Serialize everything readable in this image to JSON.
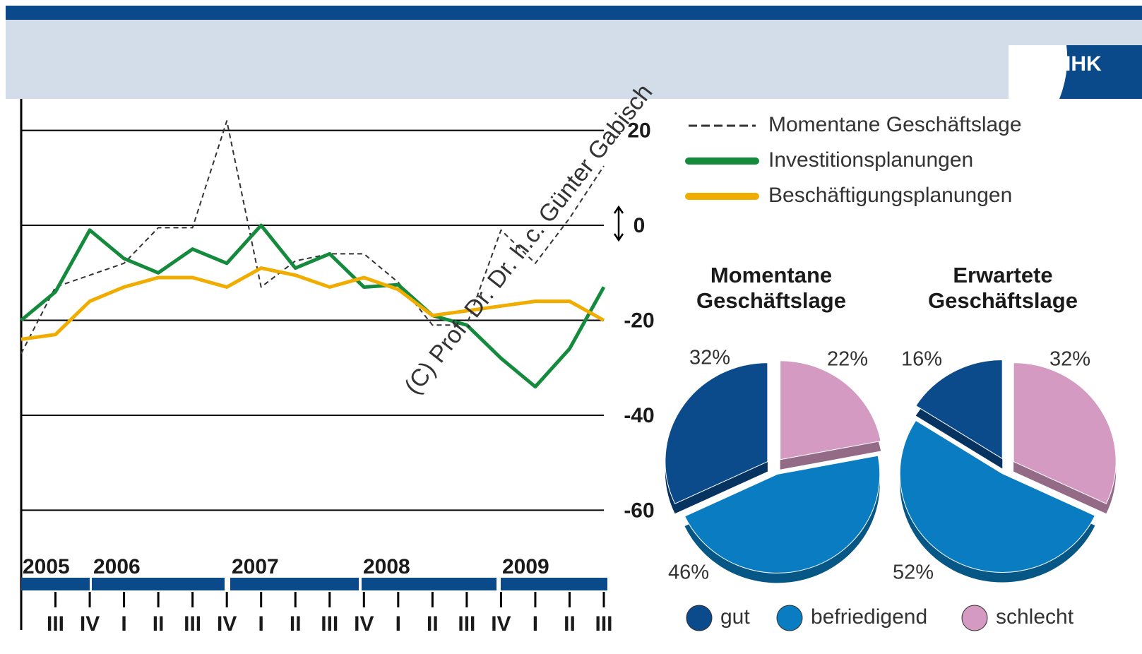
{
  "brand": "IHK",
  "chart_data": [
    {
      "type": "line",
      "annotation": "(C) Prof. Dr. Dr. h.c. Günter Gabisch",
      "years": [
        "2005",
        "2006",
        "2007",
        "2008",
        "2009"
      ],
      "categories": [
        null,
        "III",
        "IV",
        "I",
        "II",
        "III",
        "IV",
        "I",
        "II",
        "III",
        "IV",
        "I",
        "II",
        "III",
        "IV",
        "I",
        "II",
        "III"
      ],
      "ylim": [
        -65,
        25
      ],
      "yticks": [
        20,
        0,
        -20,
        -40,
        -60
      ],
      "grid": true,
      "series": [
        {
          "name": "Momentane Geschäftslage",
          "color": "#333333",
          "dash": true,
          "values": [
            -27,
            -13,
            -10.5,
            -8,
            -0.5,
            -0.5,
            22,
            -13,
            -7.5,
            -6,
            -6,
            -12,
            -21,
            -21,
            -1,
            -8,
            1.5,
            12.5
          ]
        },
        {
          "name": "Investitionsplanungen",
          "color": "#138a3c",
          "values": [
            -20,
            -14,
            -1,
            -7,
            -10,
            -5,
            -8,
            0,
            -9,
            -6,
            -13,
            -12.5,
            -19,
            -21,
            -28,
            -34,
            -26,
            -13
          ]
        },
        {
          "name": "Beschäftigungsplanungen",
          "color": "#f0ad00",
          "values": [
            -24,
            -23,
            -16,
            -13,
            -11,
            -11,
            -13,
            -9,
            -10.5,
            -13,
            -11,
            -13.5,
            -19,
            -18,
            -17,
            -16,
            -16,
            -20
          ]
        }
      ]
    },
    {
      "type": "pie",
      "title": [
        "Momentane",
        "Geschäftslage"
      ],
      "categories": [
        "gut",
        "befriedigend",
        "schlecht"
      ],
      "colors": [
        "#0b4a8b",
        "#0a7cc1",
        "#d49ac2"
      ],
      "values": [
        32,
        46,
        22
      ],
      "value_labels": [
        "32%",
        "46%",
        "22%"
      ]
    },
    {
      "type": "pie",
      "title": [
        "Erwartete",
        "Geschäftslage"
      ],
      "categories": [
        "gut",
        "befriedigend",
        "schlecht"
      ],
      "colors": [
        "#0b4a8b",
        "#0a7cc1",
        "#d49ac2"
      ],
      "values": [
        16,
        52,
        32
      ],
      "value_labels": [
        "16%",
        "52%",
        "32%"
      ]
    }
  ]
}
